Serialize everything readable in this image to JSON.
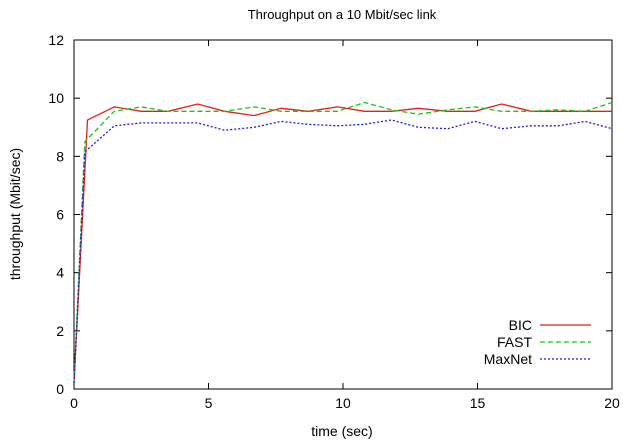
{
  "chart_data": {
    "type": "line",
    "title": "Throughput on a 10 Mbit/sec link",
    "xlabel": "time (sec)",
    "ylabel": "throughput (Mbit/sec)",
    "xlim": [
      0,
      20
    ],
    "ylim": [
      0,
      12
    ],
    "xticks": [
      0,
      5,
      10,
      15,
      20
    ],
    "yticks": [
      0,
      2,
      4,
      6,
      8,
      10,
      12
    ],
    "grid": false,
    "legend_position": "bottom-right",
    "series": [
      {
        "name": "BIC",
        "color": "#e0201b",
        "dash": "solid",
        "x": [
          0,
          0.5,
          1.5,
          2.5,
          3.5,
          4.6,
          5.6,
          6.7,
          7.7,
          8.7,
          9.8,
          10.8,
          11.8,
          12.8,
          13.9,
          14.9,
          15.9,
          17.0,
          18.0,
          19.0,
          20.0
        ],
        "y": [
          0.2,
          9.25,
          9.7,
          9.55,
          9.55,
          9.8,
          9.55,
          9.4,
          9.65,
          9.55,
          9.7,
          9.55,
          9.55,
          9.65,
          9.55,
          9.55,
          9.8,
          9.55,
          9.55,
          9.55,
          9.55
        ]
      },
      {
        "name": "FAST",
        "color": "#16c716",
        "dash": "dashed",
        "x": [
          0,
          0.4,
          1.5,
          2.5,
          3.5,
          4.6,
          5.6,
          6.7,
          7.7,
          8.7,
          9.8,
          10.8,
          11.8,
          12.8,
          13.9,
          14.9,
          15.9,
          17.0,
          18.0,
          19.0,
          20.0
        ],
        "y": [
          0.2,
          8.5,
          9.55,
          9.7,
          9.55,
          9.55,
          9.55,
          9.7,
          9.55,
          9.55,
          9.55,
          9.85,
          9.6,
          9.45,
          9.6,
          9.7,
          9.55,
          9.55,
          9.6,
          9.55,
          9.85
        ]
      },
      {
        "name": "MaxNet",
        "color": "#1c1cd6",
        "dash": "dotted",
        "x": [
          0,
          0.4,
          1.5,
          2.5,
          3.5,
          4.6,
          5.6,
          6.7,
          7.7,
          8.7,
          9.8,
          10.8,
          11.8,
          12.8,
          13.9,
          14.9,
          15.9,
          17.0,
          18.0,
          19.0,
          20.0
        ],
        "y": [
          0.2,
          8.15,
          9.05,
          9.15,
          9.15,
          9.15,
          8.9,
          9.0,
          9.2,
          9.1,
          9.05,
          9.1,
          9.25,
          9.0,
          8.95,
          9.2,
          8.95,
          9.05,
          9.05,
          9.2,
          8.95
        ]
      }
    ]
  }
}
